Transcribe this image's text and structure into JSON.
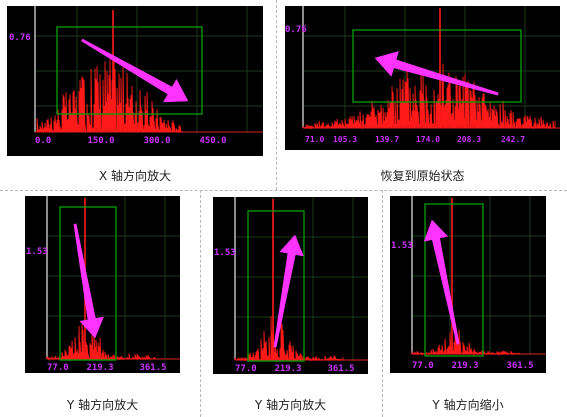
{
  "colors": {
    "background": "#000000",
    "signal": "#ff1a1a",
    "axis_labels": "#cc33ff",
    "zoom_box": "#00a000",
    "arrow": "#ff33ff",
    "grid": "#1e3a1e",
    "axis_line": "#bbbbbb"
  },
  "panels": [
    {
      "id": "x-zoom-in",
      "caption": "X 轴方向放大",
      "y_label": "0.76",
      "x_ticks": [
        "0.0",
        "150.0",
        "300.0",
        "450.0"
      ],
      "arrow_direction": "down-right",
      "gesture": "drag-right"
    },
    {
      "id": "restore",
      "caption": "恢复到原始状态",
      "y_label": "0.76",
      "x_ticks": [
        "71.0",
        "105.3",
        "139.7",
        "174.0",
        "208.3",
        "242.7"
      ],
      "arrow_direction": "up-left",
      "gesture": "drag-left"
    },
    {
      "id": "y-zoom-in-1",
      "caption": "Y 轴方向放大",
      "y_label": "1.53",
      "x_ticks": [
        "77.0",
        "219.3",
        "361.5"
      ],
      "arrow_direction": "down",
      "gesture": "drag-down"
    },
    {
      "id": "y-zoom-in-2",
      "caption": "Y 轴方向放大",
      "y_label": "1.53",
      "x_ticks": [
        "77.0",
        "219.3",
        "361.5"
      ],
      "arrow_direction": "up",
      "gesture": "drag-up"
    },
    {
      "id": "y-zoom-out",
      "caption": "Y 轴方向缩小",
      "y_label": "1.53",
      "x_ticks": [
        "77.0",
        "219.3",
        "361.5"
      ],
      "arrow_direction": "up",
      "gesture": "drag-up"
    }
  ]
}
